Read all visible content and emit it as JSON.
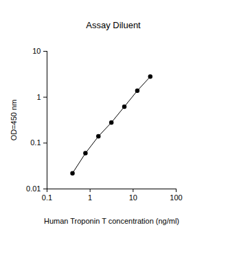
{
  "chart_data": {
    "type": "line",
    "title": "Assay Diluent",
    "xlabel": "Human Troponin T concentration (ng/ml)",
    "ylabel": "OD=450 nm",
    "x": [
      0.39,
      0.78,
      1.56,
      3.125,
      6.25,
      12.5,
      25
    ],
    "values": [
      0.022,
      0.06,
      0.14,
      0.28,
      0.62,
      1.38,
      2.8
    ],
    "color": "#000000",
    "marker": "circle",
    "line_style": "solid",
    "log": true,
    "xlim": [
      0.1,
      100
    ],
    "xticks": [
      0.1,
      1,
      10,
      100
    ],
    "ylim": [
      0.01,
      10
    ],
    "yticks": [
      0.01,
      0.1,
      1,
      10
    ],
    "grid": false
  }
}
